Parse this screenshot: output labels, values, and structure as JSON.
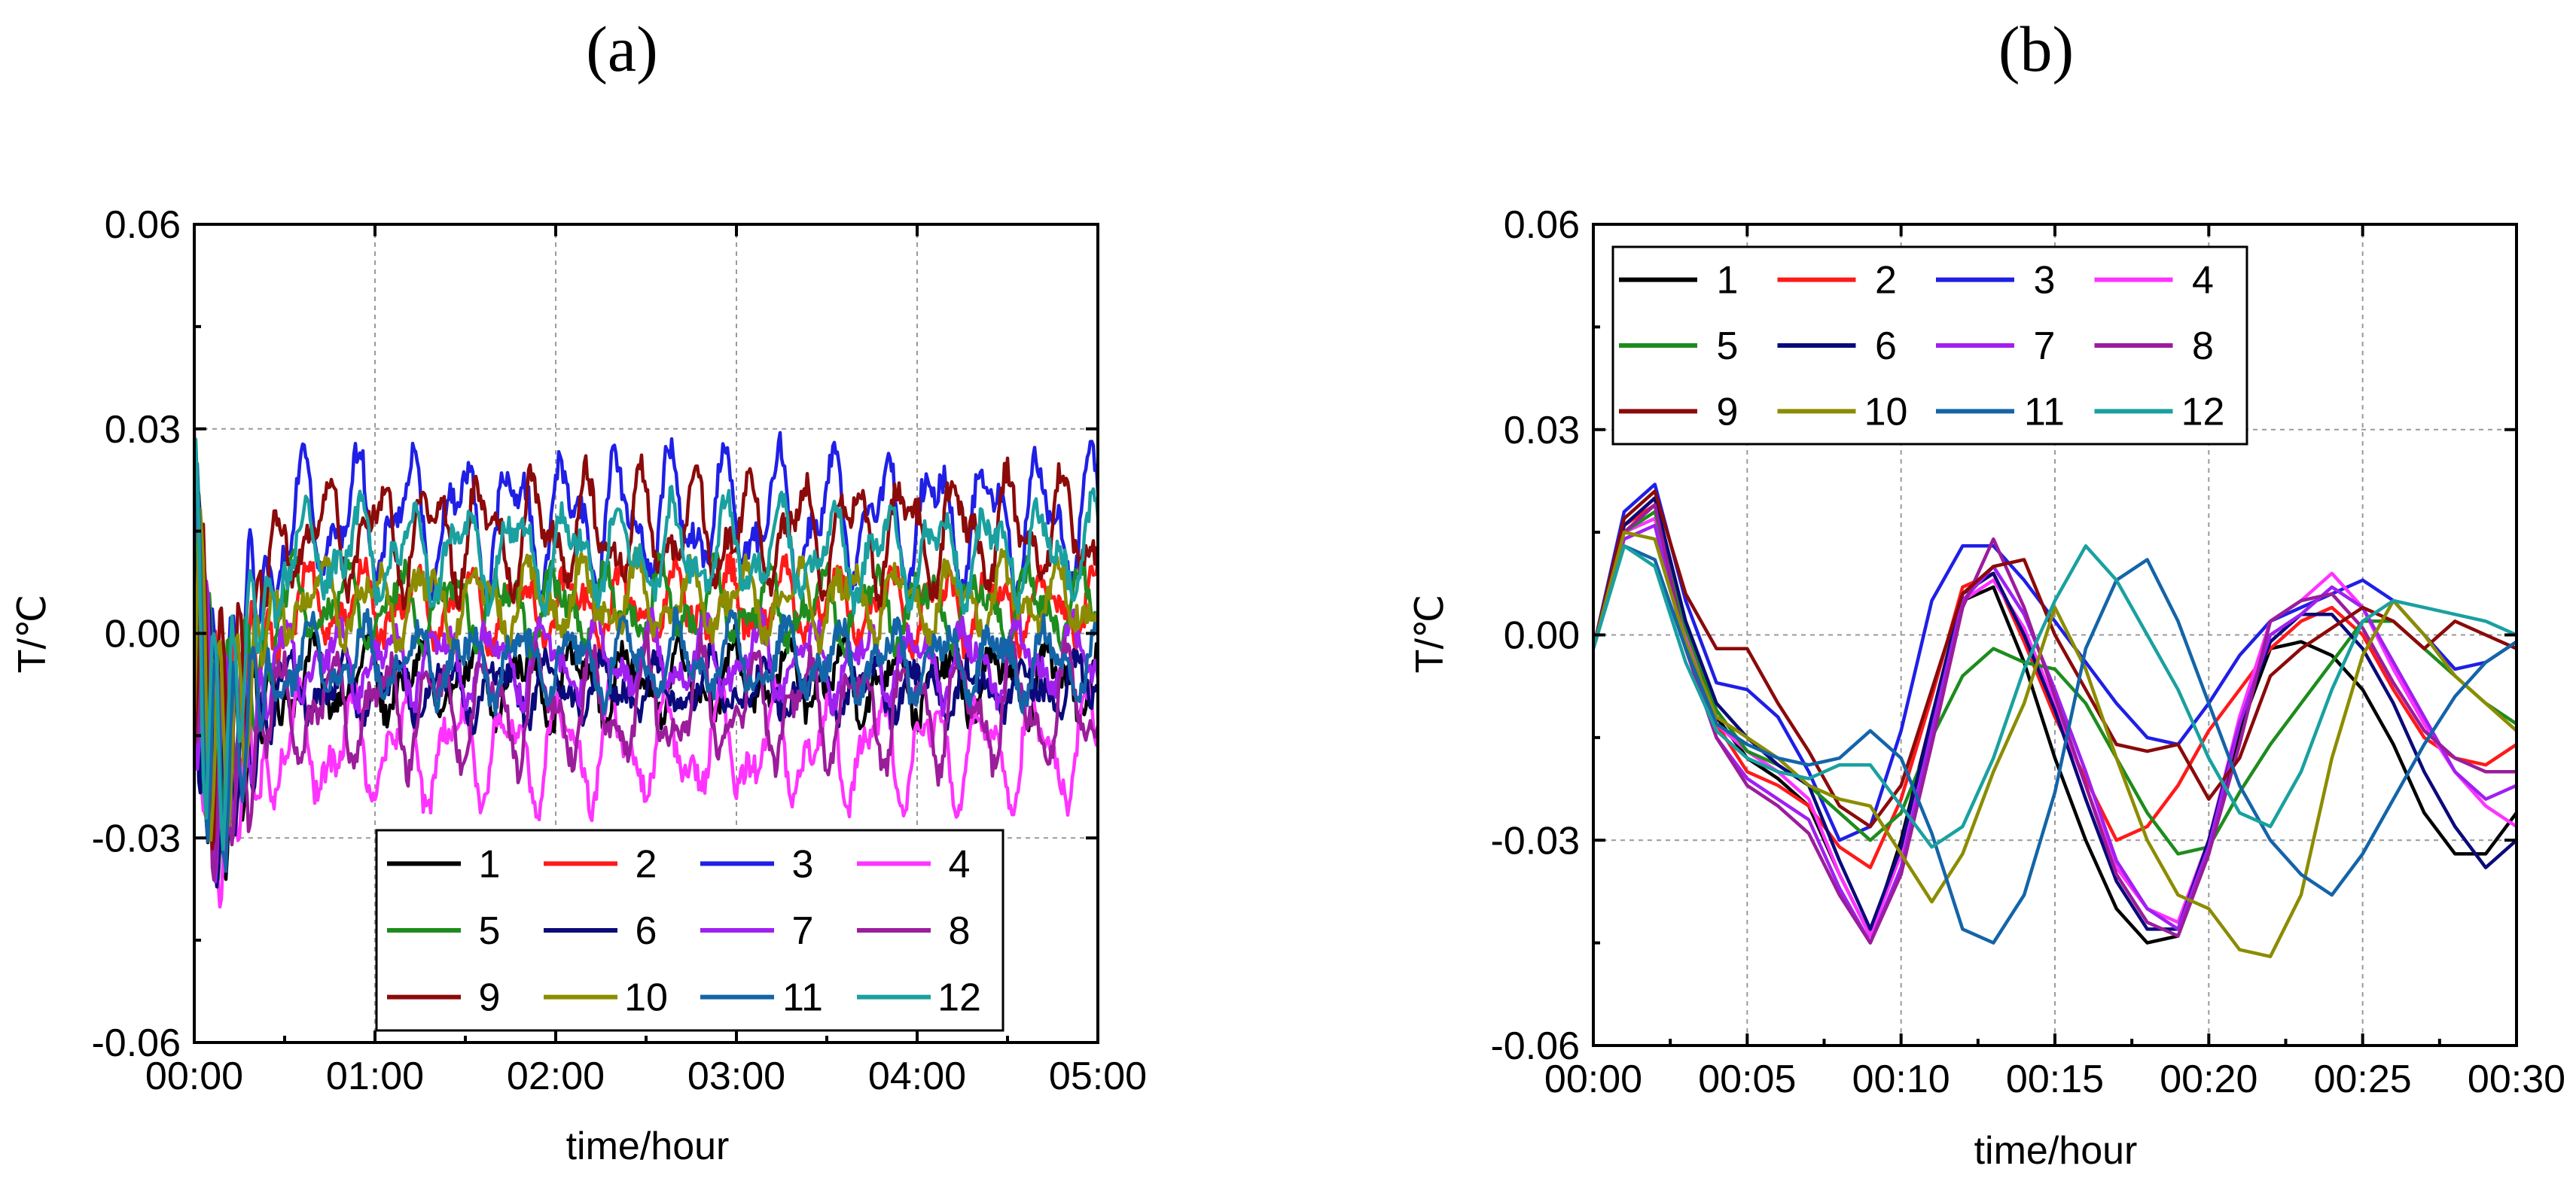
{
  "chart_data": [
    {
      "panel_label": "(a)",
      "type": "line",
      "xlabel": "time/hour",
      "ylabel": "T/℃",
      "x_range_hours": [
        0,
        5
      ],
      "ylim": [
        -0.06,
        0.06
      ],
      "x_ticks": [
        "00:00",
        "01:00",
        "02:00",
        "03:00",
        "04:00",
        "05:00"
      ],
      "y_ticks": [
        "0.06",
        "0.03",
        "0.00",
        "-0.03",
        "-0.06"
      ],
      "grid": true,
      "legend_position": "bottom-right",
      "series": [
        {
          "name": "1",
          "color": "#000000",
          "mean": -0.007,
          "amp": 0.004,
          "phase": 0.0
        },
        {
          "name": "2",
          "color": "#ff1a1a",
          "mean": 0.004,
          "amp": 0.004,
          "phase": 0.6
        },
        {
          "name": "3",
          "color": "#1f1fe6",
          "mean": 0.017,
          "amp": 0.007,
          "phase": 1.2
        },
        {
          "name": "4",
          "color": "#ff33ff",
          "mean": -0.017,
          "amp": 0.006,
          "phase": 1.8
        },
        {
          "name": "5",
          "color": "#1e8c1e",
          "mean": 0.004,
          "amp": 0.004,
          "phase": 2.4
        },
        {
          "name": "6",
          "color": "#0a0a7a",
          "mean": -0.008,
          "amp": 0.003,
          "phase": 3.0
        },
        {
          "name": "7",
          "color": "#a020f0",
          "mean": -0.004,
          "amp": 0.004,
          "phase": 3.6
        },
        {
          "name": "8",
          "color": "#9b1d9b",
          "mean": -0.011,
          "amp": 0.006,
          "phase": 4.2
        },
        {
          "name": "9",
          "color": "#8b0a0a",
          "mean": 0.015,
          "amp": 0.006,
          "phase": 4.8
        },
        {
          "name": "10",
          "color": "#8c8c00",
          "mean": 0.005,
          "amp": 0.004,
          "phase": 5.4
        },
        {
          "name": "11",
          "color": "#1464a8",
          "mean": -0.004,
          "amp": 0.004,
          "phase": 0.3
        },
        {
          "name": "12",
          "color": "#1aa0a0",
          "mean": 0.012,
          "amp": 0.005,
          "phase": 0.9
        }
      ]
    },
    {
      "panel_label": "(b)",
      "type": "line",
      "xlabel": "time/hour",
      "ylabel": "T/℃",
      "x_minutes": [
        0,
        1,
        2,
        3,
        4,
        5,
        6,
        7,
        8,
        9,
        10,
        11,
        12,
        13,
        14,
        15,
        16,
        17,
        18,
        19,
        20,
        21,
        22,
        23,
        24,
        25,
        26,
        27,
        28,
        29,
        30
      ],
      "ylim": [
        -0.06,
        0.06
      ],
      "x_ticks": [
        "00:00",
        "00:05",
        "00:10",
        "00:15",
        "00:20",
        "00:25",
        "00:30"
      ],
      "y_ticks": [
        "0.06",
        "0.03",
        "0.00",
        "-0.03",
        "-0.06"
      ],
      "grid": true,
      "legend_position": "top-left",
      "series": [
        {
          "name": "1",
          "color": "#000000",
          "values": [
            -0.002,
            0.016,
            0.02,
            0.0,
            -0.012,
            -0.018,
            -0.021,
            -0.025,
            -0.035,
            -0.044,
            -0.03,
            -0.012,
            0.005,
            0.007,
            -0.004,
            -0.018,
            -0.03,
            -0.04,
            -0.045,
            -0.044,
            -0.032,
            -0.014,
            -0.002,
            -0.001,
            -0.003,
            -0.008,
            -0.016,
            -0.026,
            -0.032,
            -0.032,
            -0.026
          ]
        },
        {
          "name": "2",
          "color": "#ff1a1a",
          "values": [
            -0.002,
            0.016,
            0.019,
            0.0,
            -0.013,
            -0.02,
            -0.022,
            -0.025,
            -0.031,
            -0.034,
            -0.024,
            -0.009,
            0.007,
            0.009,
            -0.001,
            -0.012,
            -0.021,
            -0.03,
            -0.028,
            -0.022,
            -0.014,
            -0.008,
            -0.002,
            0.002,
            0.004,
            0.0,
            -0.008,
            -0.015,
            -0.018,
            -0.019,
            -0.016
          ]
        },
        {
          "name": "3",
          "color": "#1f1fe6",
          "values": [
            -0.002,
            0.018,
            0.022,
            0.005,
            -0.007,
            -0.008,
            -0.012,
            -0.02,
            -0.03,
            -0.028,
            -0.014,
            0.005,
            0.013,
            0.013,
            0.008,
            0.002,
            -0.004,
            -0.01,
            -0.015,
            -0.016,
            -0.01,
            -0.003,
            0.002,
            0.004,
            0.006,
            0.008,
            0.005,
            0.0,
            -0.005,
            -0.004,
            -0.001
          ]
        },
        {
          "name": "4",
          "color": "#ff33ff",
          "values": [
            -0.002,
            0.015,
            0.017,
            0.0,
            -0.013,
            -0.017,
            -0.02,
            -0.024,
            -0.035,
            -0.044,
            -0.032,
            -0.014,
            0.005,
            0.008,
            0.001,
            -0.01,
            -0.022,
            -0.034,
            -0.04,
            -0.042,
            -0.03,
            -0.012,
            0.002,
            0.005,
            0.009,
            0.004,
            -0.005,
            -0.013,
            -0.02,
            -0.025,
            -0.028
          ]
        },
        {
          "name": "5",
          "color": "#1e8c1e",
          "values": [
            -0.002,
            0.015,
            0.018,
            0.001,
            -0.011,
            -0.017,
            -0.019,
            -0.022,
            -0.026,
            -0.03,
            -0.026,
            -0.015,
            -0.006,
            -0.002,
            -0.004,
            -0.005,
            -0.01,
            -0.018,
            -0.026,
            -0.032,
            -0.031,
            -0.023,
            -0.016,
            -0.01,
            -0.004,
            0.002,
            0.002,
            -0.002,
            -0.006,
            -0.01,
            -0.013
          ]
        },
        {
          "name": "6",
          "color": "#0a0a7a",
          "values": [
            -0.002,
            0.016,
            0.02,
            0.002,
            -0.01,
            -0.015,
            -0.019,
            -0.022,
            -0.033,
            -0.043,
            -0.031,
            -0.012,
            0.006,
            0.009,
            0.0,
            -0.011,
            -0.024,
            -0.036,
            -0.043,
            -0.043,
            -0.03,
            -0.013,
            -0.001,
            0.003,
            0.003,
            -0.002,
            -0.01,
            -0.02,
            -0.028,
            -0.034,
            -0.03
          ]
        },
        {
          "name": "7",
          "color": "#a020f0",
          "values": [
            -0.002,
            0.014,
            0.016,
            -0.002,
            -0.015,
            -0.021,
            -0.024,
            -0.027,
            -0.037,
            -0.045,
            -0.034,
            -0.014,
            0.005,
            0.01,
            0.003,
            -0.008,
            -0.02,
            -0.033,
            -0.04,
            -0.043,
            -0.031,
            -0.013,
            0.0,
            0.003,
            0.007,
            0.004,
            -0.004,
            -0.012,
            -0.02,
            -0.024,
            -0.022
          ]
        },
        {
          "name": "8",
          "color": "#9b1d9b",
          "values": [
            -0.002,
            0.015,
            0.019,
            -0.002,
            -0.015,
            -0.022,
            -0.025,
            -0.029,
            -0.038,
            -0.045,
            -0.035,
            -0.016,
            0.004,
            0.014,
            0.004,
            -0.009,
            -0.022,
            -0.035,
            -0.042,
            -0.044,
            -0.032,
            -0.016,
            0.002,
            0.005,
            0.006,
            0.001,
            -0.007,
            -0.014,
            -0.018,
            -0.02,
            -0.02
          ]
        },
        {
          "name": "9",
          "color": "#8b0a0a",
          "values": [
            -0.002,
            0.017,
            0.021,
            0.006,
            -0.002,
            -0.002,
            -0.01,
            -0.017,
            -0.025,
            -0.028,
            -0.022,
            -0.008,
            0.006,
            0.01,
            0.011,
            0.0,
            -0.008,
            -0.016,
            -0.017,
            -0.016,
            -0.024,
            -0.018,
            -0.006,
            -0.002,
            0.001,
            0.004,
            0.002,
            -0.002,
            0.002,
            0.0,
            -0.002
          ]
        },
        {
          "name": "10",
          "color": "#8c8c00",
          "values": [
            -0.002,
            0.015,
            0.014,
            -0.001,
            -0.012,
            -0.015,
            -0.018,
            -0.022,
            -0.024,
            -0.025,
            -0.032,
            -0.039,
            -0.032,
            -0.02,
            -0.01,
            0.004,
            -0.005,
            -0.018,
            -0.03,
            -0.038,
            -0.04,
            -0.046,
            -0.047,
            -0.038,
            -0.018,
            -0.003,
            0.005,
            0.0,
            -0.006,
            -0.01,
            -0.014
          ]
        },
        {
          "name": "11",
          "color": "#1464a8",
          "values": [
            -0.002,
            0.013,
            0.011,
            -0.002,
            -0.013,
            -0.016,
            -0.018,
            -0.019,
            -0.018,
            -0.014,
            -0.018,
            -0.029,
            -0.043,
            -0.045,
            -0.038,
            -0.023,
            -0.002,
            0.008,
            0.011,
            0.002,
            -0.01,
            -0.022,
            -0.03,
            -0.035,
            -0.038,
            -0.032,
            -0.024,
            -0.016,
            -0.009,
            -0.004,
            -0.001
          ]
        },
        {
          "name": "12",
          "color": "#1aa0a0",
          "values": [
            -0.002,
            0.013,
            0.01,
            -0.004,
            -0.014,
            -0.018,
            -0.02,
            -0.021,
            -0.019,
            -0.019,
            -0.025,
            -0.031,
            -0.028,
            -0.018,
            -0.005,
            0.005,
            0.013,
            0.008,
            0.0,
            -0.008,
            -0.018,
            -0.026,
            -0.028,
            -0.02,
            -0.008,
            0.002,
            0.005,
            0.004,
            0.003,
            0.002,
            0.0
          ]
        }
      ]
    }
  ]
}
